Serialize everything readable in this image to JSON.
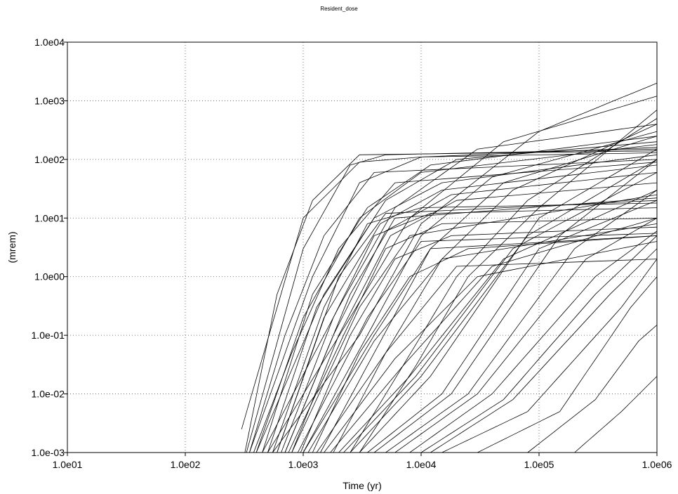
{
  "chart_data": {
    "type": "line",
    "title": "Resident_dose",
    "xlabel": "Time (yr)",
    "ylabel": "(mrem)",
    "x_scale": "log",
    "y_scale": "log",
    "xlim": [
      10,
      1000000
    ],
    "ylim": [
      0.001,
      10000
    ],
    "x_tick_labels": [
      "1.0e01",
      "1.0e02",
      "1.0e03",
      "1.0e04",
      "1.0e05",
      "1.0e06"
    ],
    "y_tick_labels": [
      "1.0e04",
      "1.0e03",
      "1.0e02",
      "1.0e01",
      "1.0e00",
      "1.0e-01",
      "1.0e-02",
      "1.0e-03"
    ],
    "grid": "dotted",
    "line_color": "#000000",
    "series": [
      {
        "x": [
          300,
          1000,
          3000,
          10000,
          1000000
        ],
        "y": [
          0.0025,
          10,
          90,
          110,
          130
        ]
      },
      {
        "x": [
          330,
          1000,
          2500,
          5000,
          1000000
        ],
        "y": [
          0.001,
          3,
          80,
          120,
          150
        ]
      },
      {
        "x": [
          350,
          1200,
          3000,
          10000,
          1000000
        ],
        "y": [
          0.001,
          1,
          40,
          110,
          160
        ]
      },
      {
        "x": [
          400,
          1500,
          5000,
          20000,
          1000000
        ],
        "y": [
          0.001,
          0.5,
          20,
          100,
          200
        ]
      },
      {
        "x": [
          450,
          2000,
          6000,
          30000,
          1000000
        ],
        "y": [
          0.001,
          0.3,
          15,
          150,
          400
        ]
      },
      {
        "x": [
          500,
          2500,
          8000,
          50000,
          1000000
        ],
        "y": [
          0.001,
          0.2,
          10,
          200,
          1200
        ]
      },
      {
        "x": [
          550,
          3000,
          10000,
          100000,
          1000000
        ],
        "y": [
          0.001,
          0.1,
          8,
          300,
          2000
        ]
      },
      {
        "x": [
          600,
          2000,
          5000,
          1000000
        ],
        "y": [
          0.001,
          1,
          12,
          20
        ]
      },
      {
        "x": [
          700,
          2500,
          6000,
          1000000
        ],
        "y": [
          0.001,
          0.5,
          10,
          22
        ]
      },
      {
        "x": [
          800,
          3000,
          8000,
          1000000
        ],
        "y": [
          0.001,
          0.3,
          5,
          25
        ]
      },
      {
        "x": [
          900,
          3500,
          10000,
          1000000
        ],
        "y": [
          0.001,
          0.2,
          4,
          5.5
        ]
      },
      {
        "x": [
          1000,
          4000,
          12000,
          1000000
        ],
        "y": [
          0.001,
          0.1,
          3,
          5
        ]
      },
      {
        "x": [
          1100,
          4000,
          15000,
          1000000
        ],
        "y": [
          0.001,
          0.08,
          2,
          8
        ]
      },
      {
        "x": [
          1300,
          5000,
          20000,
          1000000
        ],
        "y": [
          0.001,
          0.05,
          1.5,
          2
        ]
      },
      {
        "x": [
          1500,
          6000,
          30000,
          1000000
        ],
        "y": [
          0.001,
          0.04,
          1,
          4
        ]
      },
      {
        "x": [
          1700,
          7000,
          40000,
          1000000
        ],
        "y": [
          0.001,
          0.03,
          1.5,
          10
        ]
      },
      {
        "x": [
          2000,
          8000,
          50000,
          1000000
        ],
        "y": [
          0.001,
          0.02,
          2,
          30
        ]
      },
      {
        "x": [
          2200,
          9000,
          60000,
          1000000
        ],
        "y": [
          0.001,
          0.02,
          3,
          60
        ]
      },
      {
        "x": [
          2500,
          10000,
          80000,
          1000000
        ],
        "y": [
          0.001,
          0.02,
          5,
          100
        ]
      },
      {
        "x": [
          3000,
          12000,
          100000,
          1000000
        ],
        "y": [
          0.001,
          0.02,
          10,
          150
        ]
      },
      {
        "x": [
          3500,
          15000,
          100000,
          1000000
        ],
        "y": [
          0.001,
          0.01,
          3,
          20
        ]
      },
      {
        "x": [
          4000,
          18000,
          150000,
          1000000
        ],
        "y": [
          0.001,
          0.01,
          5,
          100
        ]
      },
      {
        "x": [
          5000,
          25000,
          200000,
          1000000
        ],
        "y": [
          0.001,
          0.01,
          3,
          30
        ]
      },
      {
        "x": [
          6000,
          30000,
          250000,
          1000000
        ],
        "y": [
          0.001,
          0.01,
          2,
          10
        ]
      },
      {
        "x": [
          8000,
          40000,
          300000,
          1000000
        ],
        "y": [
          0.001,
          0.01,
          1,
          6
        ]
      },
      {
        "x": [
          10000,
          50000,
          300000,
          1000000
        ],
        "y": [
          0.001,
          0.008,
          0.5,
          5
        ]
      },
      {
        "x": [
          12000,
          60000,
          400000,
          1000000
        ],
        "y": [
          0.001,
          0.008,
          0.5,
          3
        ]
      },
      {
        "x": [
          15000,
          80000,
          500000,
          1000000
        ],
        "y": [
          0.001,
          0.005,
          0.3,
          2
        ]
      },
      {
        "x": [
          30000,
          150000,
          600000,
          1000000
        ],
        "y": [
          0.001,
          0.005,
          0.3,
          1
        ]
      },
      {
        "x": [
          80000,
          300000,
          700000,
          1000000
        ],
        "y": [
          0.001,
          0.008,
          0.08,
          0.15
        ]
      },
      {
        "x": [
          200000,
          500000,
          1000000
        ],
        "y": [
          0.001,
          0.005,
          0.02
        ]
      },
      {
        "x": [
          400,
          1000,
          3000,
          10000,
          1000000
        ],
        "y": [
          0.001,
          0.2,
          10,
          60,
          180
        ]
      },
      {
        "x": [
          450,
          1200,
          3500,
          12000,
          1000000
        ],
        "y": [
          0.001,
          0.5,
          15,
          80,
          250
        ]
      },
      {
        "x": [
          500,
          1300,
          4000,
          15000,
          1000000
        ],
        "y": [
          0.001,
          0.3,
          10,
          40,
          120
        ]
      },
      {
        "x": [
          600,
          1500,
          4500,
          15000,
          1000000
        ],
        "y": [
          0.001,
          0.2,
          8,
          30,
          80
        ]
      },
      {
        "x": [
          700,
          1800,
          5000,
          18000,
          1000000
        ],
        "y": [
          0.001,
          0.1,
          6,
          25,
          60
        ]
      },
      {
        "x": [
          800,
          2000,
          5500,
          20000,
          1000000
        ],
        "y": [
          0.001,
          0.1,
          5,
          20,
          40
        ]
      },
      {
        "x": [
          550,
          1500,
          3500,
          10000,
          1000000
        ],
        "y": [
          0.001,
          0.3,
          8,
          15,
          18
        ]
      },
      {
        "x": [
          650,
          1800,
          4000,
          12000,
          1000000
        ],
        "y": [
          0.001,
          0.2,
          5,
          12,
          15
        ]
      },
      {
        "x": [
          750,
          2200,
          5000,
          15000,
          1000000
        ],
        "y": [
          0.001,
          0.1,
          3,
          8,
          10
        ]
      },
      {
        "x": [
          950,
          2500,
          6000,
          18000,
          1000000
        ],
        "y": [
          0.001,
          0.1,
          2,
          5,
          7
        ]
      },
      {
        "x": [
          1200,
          3000,
          8000,
          25000,
          1000000
        ],
        "y": [
          0.001,
          0.05,
          1,
          3,
          5
        ]
      },
      {
        "x": [
          1000,
          3500,
          10000,
          40000,
          1000000
        ],
        "y": [
          0.001,
          0.1,
          5,
          50,
          300
        ]
      },
      {
        "x": [
          1400,
          4000,
          12000,
          50000,
          1000000
        ],
        "y": [
          0.001,
          0.05,
          3,
          40,
          250
        ]
      },
      {
        "x": [
          1800,
          5000,
          15000,
          60000,
          1000000
        ],
        "y": [
          0.001,
          0.05,
          2,
          30,
          400
        ]
      },
      {
        "x": [
          2500,
          7000,
          20000,
          80000,
          1000000
        ],
        "y": [
          0.001,
          0.03,
          1,
          20,
          500
        ]
      },
      {
        "x": [
          3000,
          9000,
          25000,
          100000,
          1000000
        ],
        "y": [
          0.001,
          0.03,
          1,
          15,
          700
        ]
      },
      {
        "x": [
          350,
          700,
          1500,
          4000,
          1000000
        ],
        "y": [
          0.001,
          0.1,
          5,
          60,
          100
        ]
      },
      {
        "x": [
          380,
          800,
          2000,
          6000,
          1000000
        ],
        "y": [
          0.001,
          0.05,
          3,
          40,
          90
        ]
      },
      {
        "x": [
          320,
          600,
          1200,
          3000,
          1000000
        ],
        "y": [
          0.001,
          0.5,
          20,
          120,
          140
        ]
      }
    ]
  }
}
